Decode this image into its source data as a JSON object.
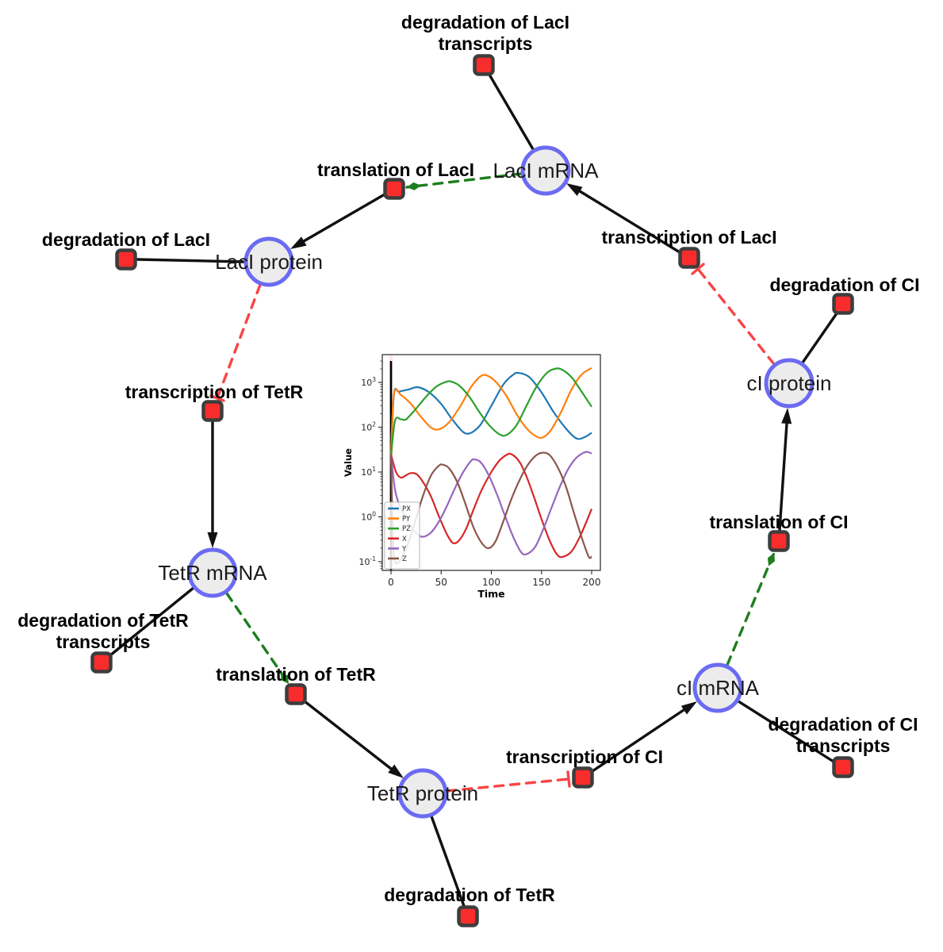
{
  "diagram": {
    "species": [
      {
        "label": "LacI mRNA"
      },
      {
        "label": "LacI protein"
      },
      {
        "label": "cI protein"
      },
      {
        "label": "cI mRNA"
      },
      {
        "label": "TetR protein"
      },
      {
        "label": "TetR mRNA"
      }
    ],
    "reactions": [
      {
        "label": "degradation of LacI",
        "label2": "transcripts"
      },
      {
        "label": "translation of LacI"
      },
      {
        "label": "transcription of LacI"
      },
      {
        "label": "degradation of LacI"
      },
      {
        "label": "degradation of CI"
      },
      {
        "label": "transcription of TetR"
      },
      {
        "label": "translation of CI"
      },
      {
        "label": "degradation of TetR",
        "label2": "transcripts"
      },
      {
        "label": "translation of TetR"
      },
      {
        "label": "transcription of CI"
      },
      {
        "label": "degradation of CI",
        "label2": "transcripts"
      },
      {
        "label": "degradation of TetR"
      }
    ]
  },
  "colors": {
    "species-fill": "#ececec",
    "species-stroke": "#6b6bf2",
    "reaction-fill": "#f92c2c",
    "reaction-stroke": "#3d3d3d",
    "edge": "#111111",
    "modifier": "#1e7d1e",
    "inhibition": "#f94444"
  },
  "chart_data": {
    "type": "line",
    "xlabel": "Time",
    "ylabel": "Value",
    "x_ticks": [
      0,
      50,
      100,
      150,
      200
    ],
    "y_scale": "log",
    "y_tick_exponents": [
      -1,
      0,
      1,
      2,
      3
    ],
    "xlim": [
      -9,
      209
    ],
    "ylim": [
      0.065,
      4200
    ],
    "grid": false,
    "legend_position": "lower left",
    "vline_x": 0,
    "series": [
      {
        "name": "PX",
        "color": "#1f77b4",
        "points": [
          [
            0,
            22
          ],
          [
            3,
            550
          ],
          [
            8,
            620
          ],
          [
            18,
            700
          ],
          [
            27,
            780
          ],
          [
            38,
            600
          ],
          [
            50,
            330
          ],
          [
            62,
            140
          ],
          [
            75,
            72
          ],
          [
            88,
            105
          ],
          [
            100,
            300
          ],
          [
            112,
            900
          ],
          [
            122,
            1500
          ],
          [
            128,
            1620
          ],
          [
            138,
            1300
          ],
          [
            150,
            600
          ],
          [
            162,
            220
          ],
          [
            175,
            90
          ],
          [
            185,
            56
          ],
          [
            193,
            60
          ],
          [
            200,
            75
          ]
        ]
      },
      {
        "name": "PY",
        "color": "#ff7f0e",
        "points": [
          [
            0,
            22
          ],
          [
            3,
            560
          ],
          [
            10,
            520
          ],
          [
            20,
            330
          ],
          [
            30,
            170
          ],
          [
            40,
            98
          ],
          [
            48,
            90
          ],
          [
            58,
            130
          ],
          [
            70,
            320
          ],
          [
            80,
            800
          ],
          [
            90,
            1400
          ],
          [
            97,
            1380
          ],
          [
            105,
            1000
          ],
          [
            115,
            500
          ],
          [
            125,
            200
          ],
          [
            135,
            95
          ],
          [
            145,
            62
          ],
          [
            152,
            60
          ],
          [
            160,
            90
          ],
          [
            170,
            230
          ],
          [
            180,
            700
          ],
          [
            190,
            1500
          ],
          [
            200,
            2100
          ]
        ]
      },
      {
        "name": "PZ",
        "color": "#2ca02c",
        "points": [
          [
            0,
            22
          ],
          [
            4,
            140
          ],
          [
            10,
            150
          ],
          [
            15,
            150
          ],
          [
            25,
            260
          ],
          [
            35,
            480
          ],
          [
            45,
            800
          ],
          [
            55,
            1030
          ],
          [
            60,
            1040
          ],
          [
            68,
            850
          ],
          [
            78,
            480
          ],
          [
            88,
            220
          ],
          [
            98,
            110
          ],
          [
            108,
            70
          ],
          [
            115,
            67
          ],
          [
            125,
            110
          ],
          [
            135,
            300
          ],
          [
            145,
            800
          ],
          [
            155,
            1600
          ],
          [
            163,
            2000
          ],
          [
            170,
            1950
          ],
          [
            180,
            1300
          ],
          [
            190,
            620
          ],
          [
            200,
            285
          ]
        ]
      },
      {
        "name": "X",
        "color": "#d62728",
        "points": [
          [
            0,
            25
          ],
          [
            5,
            10
          ],
          [
            10,
            7.5
          ],
          [
            15,
            8.5
          ],
          [
            20,
            9.5
          ],
          [
            26,
            8.8
          ],
          [
            33,
            5.5
          ],
          [
            40,
            2.8
          ],
          [
            48,
            1.0
          ],
          [
            56,
            0.4
          ],
          [
            62,
            0.26
          ],
          [
            68,
            0.3
          ],
          [
            75,
            0.55
          ],
          [
            82,
            1.4
          ],
          [
            90,
            3.8
          ],
          [
            100,
            10
          ],
          [
            108,
            18
          ],
          [
            115,
            24
          ],
          [
            120,
            25
          ],
          [
            128,
            17
          ],
          [
            135,
            8
          ],
          [
            142,
            3
          ],
          [
            150,
            0.9
          ],
          [
            158,
            0.3
          ],
          [
            166,
            0.14
          ],
          [
            172,
            0.13
          ],
          [
            180,
            0.17
          ],
          [
            188,
            0.35
          ],
          [
            195,
            0.8
          ],
          [
            200,
            1.5
          ]
        ]
      },
      {
        "name": "Y",
        "color": "#9467bd",
        "points": [
          [
            0,
            25
          ],
          [
            4,
            4
          ],
          [
            10,
            1.5
          ],
          [
            18,
            0.7
          ],
          [
            26,
            0.42
          ],
          [
            32,
            0.36
          ],
          [
            40,
            0.45
          ],
          [
            48,
            0.8
          ],
          [
            56,
            1.8
          ],
          [
            64,
            4.5
          ],
          [
            72,
            10
          ],
          [
            80,
            18
          ],
          [
            84,
            19
          ],
          [
            90,
            16
          ],
          [
            98,
            8
          ],
          [
            106,
            3
          ],
          [
            114,
            1.0
          ],
          [
            122,
            0.35
          ],
          [
            130,
            0.16
          ],
          [
            136,
            0.15
          ],
          [
            144,
            0.22
          ],
          [
            152,
            0.55
          ],
          [
            160,
            1.6
          ],
          [
            168,
            4.5
          ],
          [
            176,
            11
          ],
          [
            184,
            20
          ],
          [
            192,
            27
          ],
          [
            196,
            28
          ],
          [
            200,
            26
          ]
        ]
      },
      {
        "name": "Z",
        "color": "#8c564b",
        "points": [
          [
            0,
            25
          ],
          [
            2,
            0.3
          ],
          [
            4,
            0.1
          ],
          [
            8,
            0.1
          ],
          [
            14,
            0.17
          ],
          [
            20,
            0.4
          ],
          [
            26,
            1.1
          ],
          [
            32,
            3
          ],
          [
            40,
            8.5
          ],
          [
            48,
            14
          ],
          [
            52,
            14.5
          ],
          [
            58,
            12
          ],
          [
            66,
            6
          ],
          [
            74,
            2
          ],
          [
            82,
            0.6
          ],
          [
            90,
            0.27
          ],
          [
            97,
            0.2
          ],
          [
            104,
            0.28
          ],
          [
            112,
            0.8
          ],
          [
            120,
            2.5
          ],
          [
            128,
            6.5
          ],
          [
            136,
            14
          ],
          [
            144,
            23
          ],
          [
            151,
            27
          ],
          [
            158,
            24
          ],
          [
            166,
            13
          ],
          [
            174,
            5
          ],
          [
            182,
            1.3
          ],
          [
            190,
            0.35
          ],
          [
            197,
            0.13
          ],
          [
            200,
            0.13
          ]
        ]
      }
    ]
  }
}
